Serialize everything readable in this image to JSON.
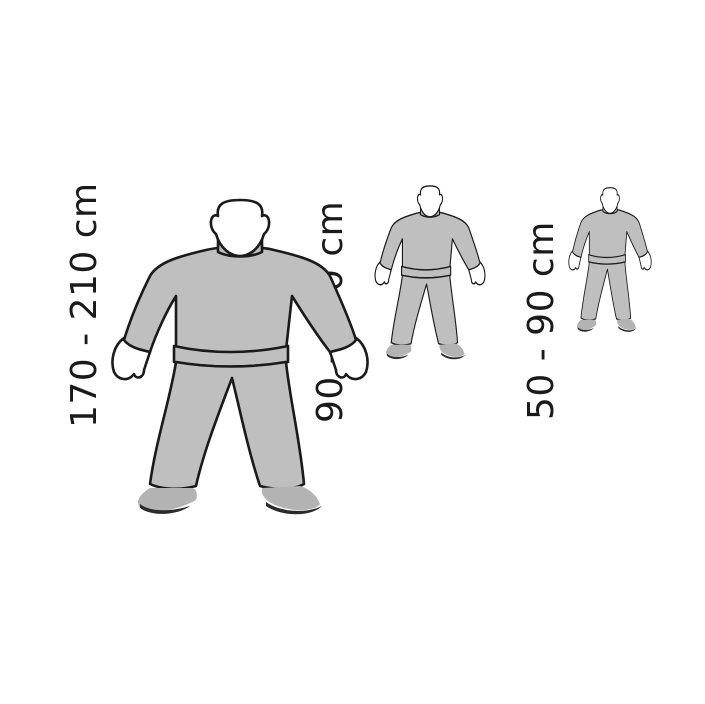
{
  "figures": [
    {
      "id": "adult",
      "label": "170 - 210 cm"
    },
    {
      "id": "child",
      "label": "90 - 170 cm"
    },
    {
      "id": "toddler",
      "label": "50 - 90 cm"
    }
  ],
  "colors": {
    "clothing": "#bfbfbf",
    "outline": "#1a1a1a",
    "skin": "#ffffff",
    "background": "#ffffff"
  }
}
